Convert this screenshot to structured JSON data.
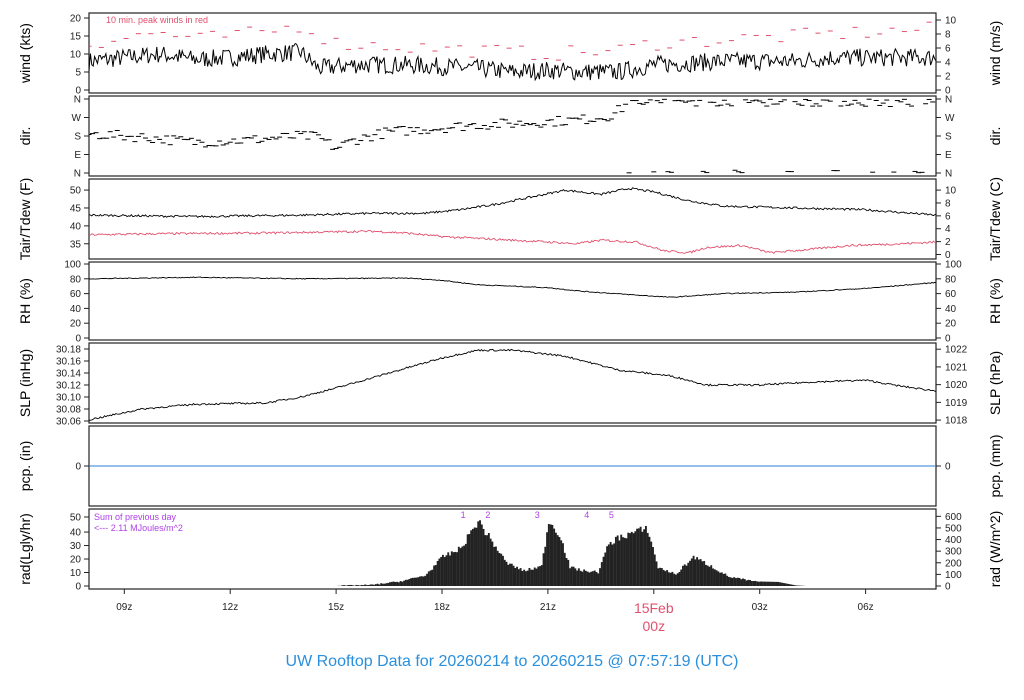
{
  "title": "UW Rooftop Data for 20260214  to  20260215 @ 07:57:19  (UTC)",
  "colors": {
    "title": "#2a8fdc",
    "peak": "#e0506e",
    "dew": "#e0506e",
    "pcp": "#2a7fd4",
    "annot": "#b040e8",
    "line": "#000000"
  },
  "chart_data": {
    "type": "line",
    "x_unit": "hours since 08z 14Feb",
    "x_ticks": [
      {
        "h": 1,
        "label": "09z"
      },
      {
        "h": 4,
        "label": "12z"
      },
      {
        "h": 7,
        "label": "15z"
      },
      {
        "h": 10,
        "label": "18z"
      },
      {
        "h": 13,
        "label": "21z"
      },
      {
        "h": 16,
        "label": "00z",
        "date": "15Feb"
      },
      {
        "h": 19,
        "label": "03z"
      },
      {
        "h": 22,
        "label": "06z"
      }
    ],
    "panels": [
      {
        "id": "wind",
        "ylabel": "wind (kts)",
        "ylabel_right": "wind (m/s)",
        "ylim": [
          0,
          20
        ],
        "left_ticks": [
          0,
          5,
          10,
          15,
          20
        ],
        "right_ticks": [
          0,
          2,
          4,
          6,
          8,
          10
        ],
        "right_factor": 1.944,
        "annotation": "10 min. peak winds in red",
        "series": [
          {
            "name": "wind speed",
            "noise": 2.5,
            "points": [
              [
                0,
                8
              ],
              [
                1,
                9
              ],
              [
                2,
                10
              ],
              [
                3,
                8.5
              ],
              [
                4,
                9
              ],
              [
                5,
                10
              ],
              [
                6,
                10.5
              ],
              [
                6.5,
                6
              ],
              [
                7.5,
                7
              ],
              [
                9,
                7
              ],
              [
                10,
                6.5
              ],
              [
                11,
                6
              ],
              [
                12,
                5
              ],
              [
                13,
                5.5
              ],
              [
                14,
                5
              ],
              [
                15,
                5
              ],
              [
                16,
                7
              ],
              [
                17,
                7.5
              ],
              [
                18,
                8
              ],
              [
                20,
                8
              ],
              [
                21,
                9
              ],
              [
                22,
                9
              ],
              [
                24,
                9
              ]
            ]
          },
          {
            "name": "peak wind",
            "style": "dash",
            "points": [
              [
                0,
                13
              ],
              [
                2,
                16
              ],
              [
                3,
                14
              ],
              [
                4,
                15
              ],
              [
                5,
                16
              ],
              [
                6,
                18
              ],
              [
                7,
                13
              ],
              [
                9,
                12
              ],
              [
                11,
                11
              ],
              [
                13,
                10
              ],
              [
                15,
                11
              ],
              [
                16,
                13
              ],
              [
                18,
                14
              ],
              [
                20,
                15
              ],
              [
                22,
                16
              ],
              [
                24,
                17
              ]
            ]
          }
        ]
      },
      {
        "id": "dir",
        "ylabel": "dir.",
        "ylabel_right": "dir.",
        "ylim": [
          0,
          360
        ],
        "left_ticks": [
          [
            0,
            "N"
          ],
          [
            90,
            "E"
          ],
          [
            180,
            "S"
          ],
          [
            270,
            "W"
          ],
          [
            360,
            "N"
          ]
        ],
        "series": [
          {
            "name": "wind direction",
            "style": "dash",
            "noise": 25,
            "points": [
              [
                0,
                190
              ],
              [
                1.5,
                175
              ],
              [
                3,
                150
              ],
              [
                4.5,
                160
              ],
              [
                6,
                180
              ],
              [
                6.5,
                175
              ],
              [
                7,
                120
              ],
              [
                7.5,
                160
              ],
              [
                8.5,
                200
              ],
              [
                10,
                220
              ],
              [
                11,
                235
              ],
              [
                12,
                240
              ],
              [
                13,
                250
              ],
              [
                14,
                260
              ],
              [
                14.8,
                280
              ],
              [
                15.3,
                340
              ],
              [
                16,
                350
              ],
              [
                20,
                350
              ],
              [
                24,
                345
              ]
            ]
          }
        ]
      },
      {
        "id": "temp",
        "ylabel": "Tair/Tdew (F)",
        "ylabel_right": "Tair/Tdew (C)",
        "ylim": [
          31.3,
          51.7
        ],
        "left_ticks": [
          35,
          40,
          45,
          50
        ],
        "right_ticks": [
          0,
          2,
          4,
          6,
          8,
          10
        ],
        "series": [
          {
            "name": "Tair",
            "noise": 0.3,
            "points": [
              [
                0,
                43
              ],
              [
                3,
                42.6
              ],
              [
                6,
                43
              ],
              [
                8,
                43.5
              ],
              [
                9.5,
                43.5
              ],
              [
                10.5,
                44.5
              ],
              [
                11.5,
                46
              ],
              [
                12.5,
                48
              ],
              [
                13.5,
                50
              ],
              [
                14.5,
                48.8
              ],
              [
                15.3,
                50.5
              ],
              [
                16,
                49.5
              ],
              [
                17,
                47
              ],
              [
                18,
                45.5
              ],
              [
                20,
                45
              ],
              [
                22,
                44.5
              ],
              [
                24,
                43
              ]
            ]
          },
          {
            "name": "Tdew",
            "color": "dew",
            "noise": 0.3,
            "points": [
              [
                0,
                37.5
              ],
              [
                2,
                37.8
              ],
              [
                5,
                38
              ],
              [
                8,
                38.5
              ],
              [
                9,
                38
              ],
              [
                10,
                37
              ],
              [
                12,
                36
              ],
              [
                13,
                35.5
              ],
              [
                13.8,
                35
              ],
              [
                14.5,
                36
              ],
              [
                15.5,
                35.5
              ],
              [
                16.3,
                33
              ],
              [
                17,
                32.5
              ],
              [
                17.5,
                34
              ],
              [
                18.5,
                34.5
              ],
              [
                19.3,
                32.5
              ],
              [
                20.5,
                33.5
              ],
              [
                21.5,
                34.5
              ],
              [
                23,
                35
              ],
              [
                24,
                35.5
              ]
            ]
          }
        ]
      },
      {
        "id": "rh",
        "ylabel": "RH (%)",
        "ylabel_right": "RH (%)",
        "ylim": [
          0,
          100
        ],
        "left_ticks": [
          0,
          20,
          40,
          60,
          80,
          100
        ],
        "right_ticks": [
          0,
          20,
          40,
          60,
          80,
          100
        ],
        "series": [
          {
            "name": "RH",
            "noise": 0.6,
            "points": [
              [
                0,
                80
              ],
              [
                3,
                82
              ],
              [
                6,
                80
              ],
              [
                9,
                81
              ],
              [
                10,
                78
              ],
              [
                11,
                72
              ],
              [
                13,
                68
              ],
              [
                14,
                63
              ],
              [
                15.5,
                58
              ],
              [
                16.5,
                55
              ],
              [
                18,
                60
              ],
              [
                20,
                62
              ],
              [
                22,
                67
              ],
              [
                24,
                75
              ]
            ]
          }
        ]
      },
      {
        "id": "slp",
        "ylabel": "SLP (inHg)",
        "ylabel_right": "SLP (hPa)",
        "ylim": [
          30.06,
          30.18
        ],
        "left_ticks": [
          30.06,
          30.08,
          30.1,
          30.12,
          30.14,
          30.16,
          30.18
        ],
        "right_ticks": [
          1018,
          1019,
          1020,
          1021,
          1022
        ],
        "series": [
          {
            "name": "SLP",
            "noise": 0.0015,
            "points": [
              [
                0,
                30.062
              ],
              [
                1.5,
                30.08
              ],
              [
                3,
                30.088
              ],
              [
                5,
                30.09
              ],
              [
                6,
                30.1
              ],
              [
                7,
                30.115
              ],
              [
                8.5,
                30.14
              ],
              [
                10,
                30.165
              ],
              [
                11,
                30.178
              ],
              [
                12,
                30.178
              ],
              [
                13.5,
                30.168
              ],
              [
                15,
                30.145
              ],
              [
                16.5,
                30.135
              ],
              [
                17.5,
                30.12
              ],
              [
                19,
                30.12
              ],
              [
                20.5,
                30.125
              ],
              [
                22,
                30.128
              ],
              [
                23,
                30.118
              ],
              [
                24,
                30.11
              ]
            ]
          }
        ]
      },
      {
        "id": "pcp",
        "ylabel": "pcp. (in)",
        "ylabel_right": "pcp. (mm)",
        "ylim": [
          -1,
          1
        ],
        "left_ticks": [
          0
        ],
        "right_ticks": [
          0
        ],
        "series": [
          {
            "name": "precipitation",
            "color": "pcp",
            "points": [
              [
                0,
                0
              ],
              [
                24,
                0
              ]
            ]
          }
        ]
      },
      {
        "id": "rad",
        "ylabel": "rad(Lgly/hr)",
        "ylabel_right": "rad (W/m^2)",
        "ylim": [
          0,
          620
        ],
        "left_ticks": [
          0,
          10,
          20,
          30,
          40,
          50
        ],
        "left_factor": 0.0861,
        "right_ticks": [
          0,
          100,
          200,
          300,
          400,
          500,
          600
        ],
        "annotation_lines": [
          "Sum of previous day",
          "<--- 2.11 MJoules/m^2"
        ],
        "markers": [
          {
            "h": 10.6,
            "label": "1"
          },
          {
            "h": 11.3,
            "label": "2"
          },
          {
            "h": 12.7,
            "label": "3"
          },
          {
            "h": 14.1,
            "label": "4"
          },
          {
            "h": 14.8,
            "label": "5"
          }
        ],
        "series": [
          {
            "name": "solar radiation",
            "style": "bar",
            "noise": 40,
            "points": [
              [
                7,
                2
              ],
              [
                8,
                10
              ],
              [
                8.8,
                40
              ],
              [
                9.5,
                90
              ],
              [
                10,
                250
              ],
              [
                10.5,
                320
              ],
              [
                11,
                560
              ],
              [
                11.4,
                380
              ],
              [
                11.8,
                200
              ],
              [
                12.3,
                130
              ],
              [
                12.8,
                170
              ],
              [
                13,
                560
              ],
              [
                13.3,
                450
              ],
              [
                13.6,
                160
              ],
              [
                14,
                130
              ],
              [
                14.4,
                120
              ],
              [
                14.7,
                360
              ],
              [
                15,
                420
              ],
              [
                15.5,
                470
              ],
              [
                15.8,
                490
              ],
              [
                16.1,
                160
              ],
              [
                16.6,
                100
              ],
              [
                17.1,
                250
              ],
              [
                17.6,
                170
              ],
              [
                18.1,
                80
              ],
              [
                18.8,
                40
              ],
              [
                19.5,
                35
              ],
              [
                20,
                5
              ],
              [
                20.3,
                0
              ],
              [
                24,
                0
              ]
            ]
          }
        ]
      }
    ]
  }
}
